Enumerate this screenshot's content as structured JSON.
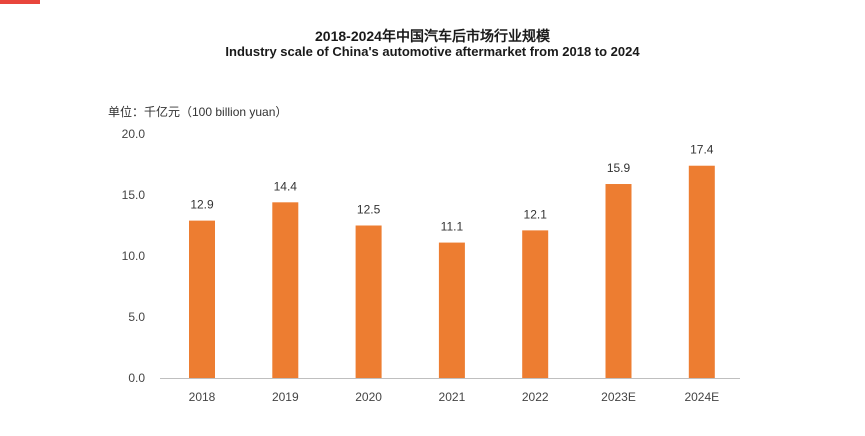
{
  "colors": {
    "bar": "#ED7D31",
    "axis": "#bfbfbf",
    "corner": "#e8453c"
  },
  "chart_data": {
    "type": "bar",
    "title": "2018-2024年中国汽车后市场行业规模",
    "subtitle": "Industry scale of China's automotive aftermarket from 2018 to 2024",
    "unit_label": "单位：千亿元（100 billion yuan）",
    "categories": [
      "2018",
      "2019",
      "2020",
      "2021",
      "2022",
      "2023E",
      "2024E"
    ],
    "values": [
      12.9,
      14.4,
      12.5,
      11.1,
      12.1,
      15.9,
      17.4
    ],
    "data_labels": [
      "12.9",
      "14.4",
      "12.5",
      "11.1",
      "12.1",
      "15.9",
      "17.4"
    ],
    "y_ticks": [
      "0.0",
      "5.0",
      "10.0",
      "15.0",
      "20.0"
    ],
    "ylim": [
      0,
      20
    ],
    "grid": false,
    "legend": "none"
  }
}
